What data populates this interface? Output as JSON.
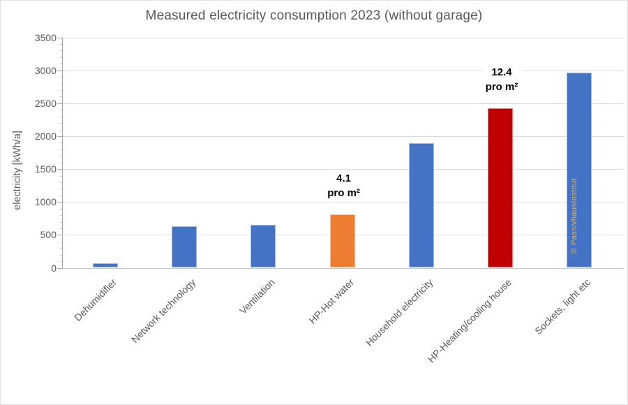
{
  "title": "Measured electricity consumption 2023 (without garage)",
  "chart_data": {
    "type": "bar",
    "title": "Measured electricity consumption 2023 (without garage)",
    "xlabel": "",
    "ylabel": "electricity [kWh/a]",
    "ylim": [
      0,
      3500
    ],
    "ytick_step": 500,
    "minor_tick_step": 100,
    "y_ticks": [
      0,
      500,
      1000,
      1500,
      2000,
      2500,
      3000,
      3500
    ],
    "grid": true,
    "legend": false,
    "categories": [
      "Dehumidifier",
      "Network technology",
      "Ventilation",
      "HP-Hot water",
      "Household electricity",
      "HP-Heating/cooling house",
      "Sockets, light etc"
    ],
    "values": [
      65,
      635,
      650,
      815,
      1895,
      2425,
      2965
    ],
    "bar_colors": [
      "#4472C4",
      "#4472C4",
      "#4472C4",
      "#ED7D31",
      "#4472C4",
      "#C00000",
      "#4472C4"
    ],
    "annotations": [
      {
        "index": 3,
        "lines": [
          "4.1",
          "pro m²"
        ]
      },
      {
        "index": 5,
        "lines": [
          "12.4",
          "pro m²"
        ]
      }
    ],
    "watermark": {
      "text": "© PassivhausInstitut",
      "color": "#DDB65A"
    },
    "colors": {
      "blue": "#4472C4",
      "orange": "#ED7D31",
      "red": "#C00000",
      "title_text": "#595959",
      "axis_text": "#595959",
      "gridline": "#DCDCDC"
    }
  }
}
